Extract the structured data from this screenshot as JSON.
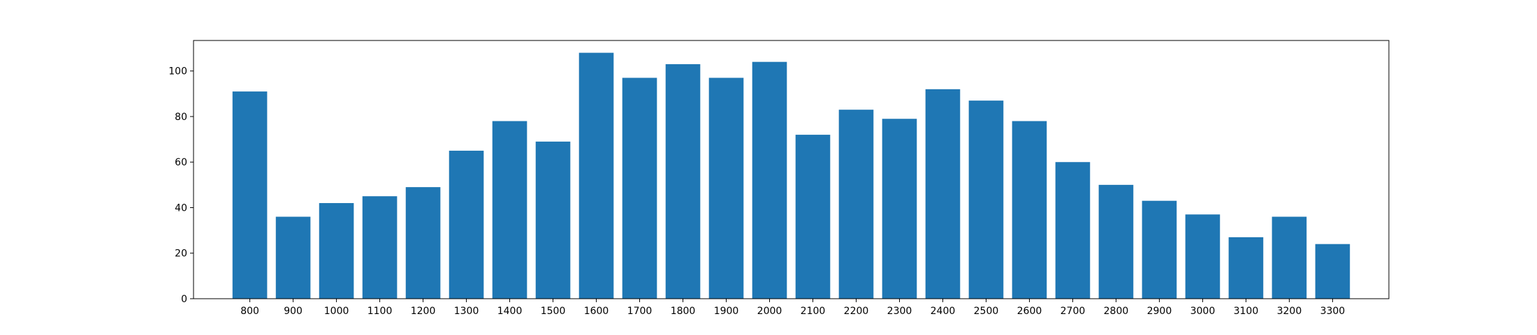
{
  "chart_data": {
    "type": "bar",
    "title": "",
    "xlabel": "",
    "ylabel": "",
    "categories": [
      "800",
      "900",
      "1000",
      "1100",
      "1200",
      "1300",
      "1400",
      "1500",
      "1600",
      "1700",
      "1800",
      "1900",
      "2000",
      "2100",
      "2200",
      "2300",
      "2400",
      "2500",
      "2600",
      "2700",
      "2800",
      "2900",
      "3000",
      "3100",
      "3200",
      "3300"
    ],
    "values": [
      91,
      36,
      42,
      45,
      49,
      65,
      78,
      69,
      108,
      97,
      103,
      97,
      104,
      72,
      83,
      79,
      92,
      87,
      78,
      60,
      50,
      43,
      37,
      27,
      36,
      24
    ],
    "ylim": [
      0,
      113.4
    ],
    "yticks": [
      0,
      20,
      40,
      60,
      80,
      100
    ],
    "bar_color": "#1f77b4",
    "grid": false,
    "legend": "none"
  }
}
